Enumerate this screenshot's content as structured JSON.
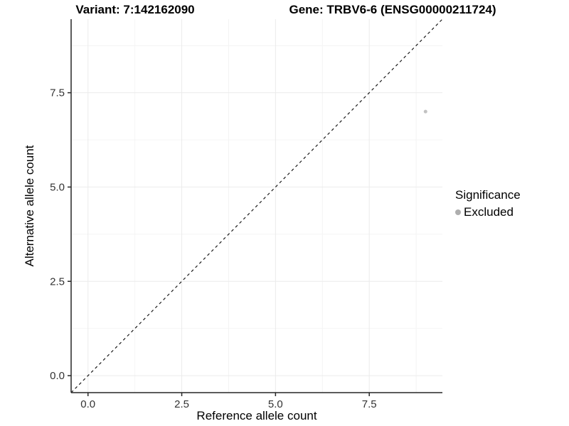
{
  "chart_data": {
    "type": "scatter",
    "titles": {
      "left": "Variant: 7:142162090",
      "right": "Gene: TRBV6-6 (ENSG00000211724)"
    },
    "xlabel": "Reference allele count",
    "ylabel": "Alternative allele count",
    "xlim": [
      -0.45,
      9.45
    ],
    "ylim": [
      -0.45,
      9.45
    ],
    "x_breaks": [
      0,
      2.5,
      5.0,
      7.5
    ],
    "x_tick_labels": [
      "0.0",
      "2.5",
      "5.0",
      "7.5"
    ],
    "x_minor_breaks": [
      1.25,
      3.75,
      6.25,
      8.75
    ],
    "y_breaks": [
      0,
      2.5,
      5.0,
      7.5
    ],
    "y_tick_labels": [
      "0.0",
      "2.5",
      "5.0",
      "7.5"
    ],
    "y_minor_breaks": [
      1.25,
      3.75,
      6.25,
      8.75
    ],
    "grid": {
      "on": true,
      "major_color": "#ebebeb",
      "minor_color": "#f4f4f4"
    },
    "identity_line": {
      "slope": 1,
      "intercept": 0,
      "style": "dashed",
      "color": "#1a1a1a"
    },
    "series": [
      {
        "name": "Excluded",
        "color": "#c2c2c2",
        "points": [
          [
            9,
            7
          ]
        ]
      }
    ],
    "legend": {
      "title": "Significance",
      "position": "right",
      "entries": [
        {
          "label": "Excluded",
          "color": "#aeaeae"
        }
      ]
    },
    "axis_color": "#262626",
    "tick_label_color": "#333333"
  }
}
